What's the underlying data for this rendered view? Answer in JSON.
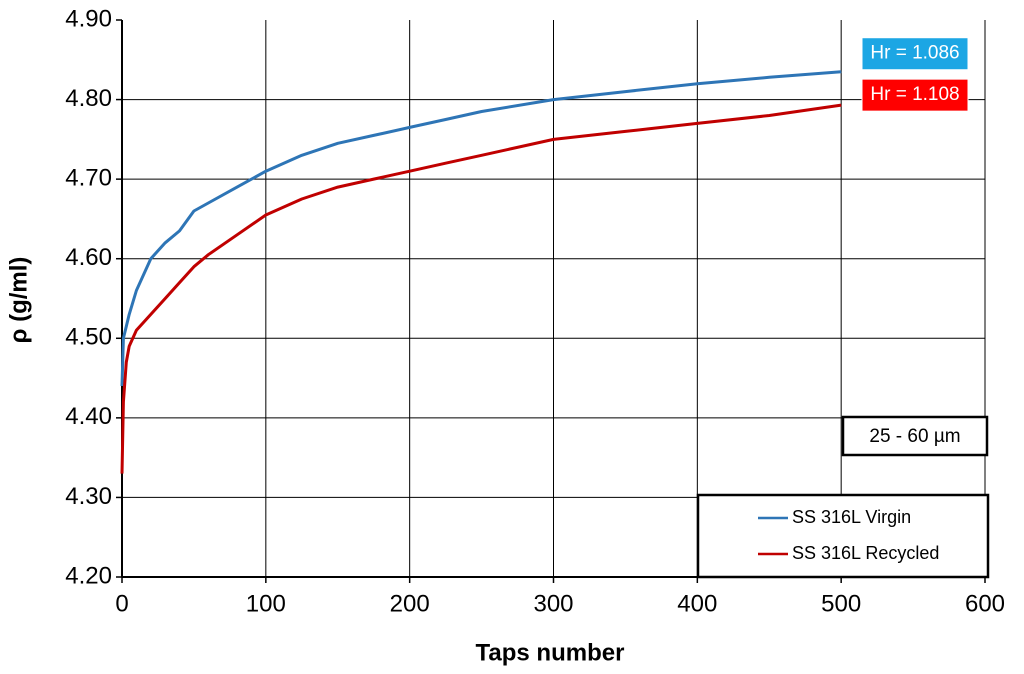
{
  "chart_data": {
    "type": "line",
    "xlabel": "Taps number",
    "ylabel": "ρ (g/ml)",
    "x": [
      0,
      1,
      3,
      5,
      10,
      20,
      30,
      40,
      50,
      60,
      80,
      100,
      125,
      150,
      175,
      200,
      225,
      250,
      300,
      350,
      400,
      450,
      500
    ],
    "series": [
      {
        "name": "SS 316L Virgin",
        "color": "#2e75b6",
        "end_label": "Hr = 1.086",
        "end_label_color": "#1ca6e4",
        "values": [
          4.44,
          4.5,
          4.515,
          4.53,
          4.56,
          4.6,
          4.62,
          4.635,
          4.66,
          4.67,
          4.69,
          4.71,
          4.73,
          4.745,
          4.755,
          4.765,
          4.775,
          4.785,
          4.8,
          4.81,
          4.82,
          4.828,
          4.835
        ]
      },
      {
        "name": "SS 316L Recycled",
        "color": "#c00000",
        "end_label": "Hr = 1.108",
        "end_label_color": "#ff0000",
        "values": [
          4.33,
          4.42,
          4.47,
          4.49,
          4.51,
          4.53,
          4.55,
          4.57,
          4.59,
          4.605,
          4.63,
          4.655,
          4.675,
          4.69,
          4.7,
          4.71,
          4.72,
          4.73,
          4.75,
          4.76,
          4.77,
          4.78,
          4.793
        ]
      }
    ],
    "note": "25 - 60 µm",
    "xlim": [
      0,
      600
    ],
    "xticks": [
      0,
      100,
      200,
      300,
      400,
      500,
      600
    ],
    "ylim": [
      4.2,
      4.9
    ],
    "yticks": [
      {
        "value": 4.2,
        "label": "4.20"
      },
      {
        "value": 4.3,
        "label": "4.30"
      },
      {
        "value": 4.4,
        "label": "4.40"
      },
      {
        "value": 4.5,
        "label": "4.50"
      },
      {
        "value": 4.6,
        "label": "4.60"
      },
      {
        "value": 4.7,
        "label": "4.70"
      },
      {
        "value": 4.8,
        "label": "4.80"
      },
      {
        "value": 4.9,
        "label": "4.90"
      }
    ],
    "grid": true,
    "legend": "lower right"
  }
}
